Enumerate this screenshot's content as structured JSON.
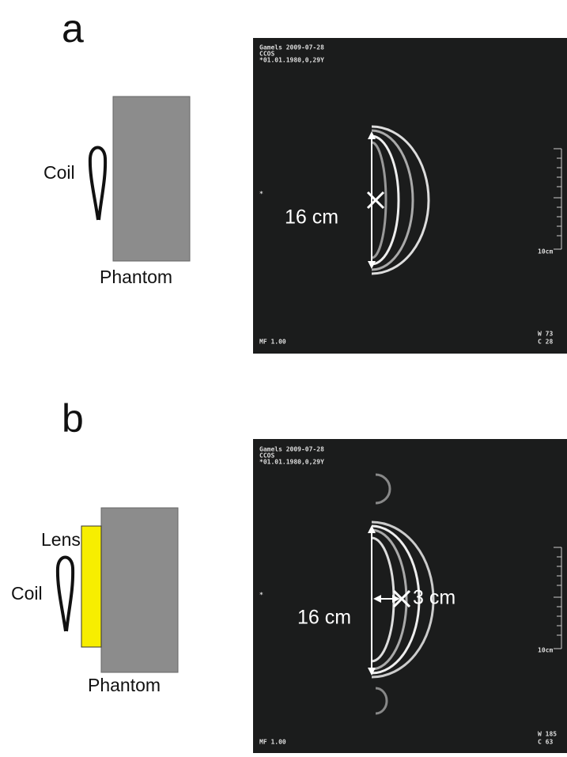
{
  "panels": [
    {
      "label": "a",
      "coil": "Coil",
      "phantom": "Phantom",
      "image": {
        "header": [
          "Gamels 2009-07-28",
          "CCOS",
          "*01.01.1980,0,29Y"
        ],
        "marker": "*",
        "scale": "10cm",
        "footer": "MF 1.00",
        "window": [
          "W 73",
          "C 28"
        ],
        "annotations": [
          "16 cm"
        ]
      }
    },
    {
      "label": "b",
      "lens": "Lens",
      "coil": "Coil",
      "phantom": "Phantom",
      "image": {
        "header": [
          "Gamels 2009-07-28",
          "CCOS",
          "*01.01.1980,0,29Y"
        ],
        "marker": "*",
        "scale": "10cm",
        "footer": "MF 1.00",
        "window": [
          "W 185",
          "C 63"
        ],
        "annotations": [
          "16 cm",
          "3 cm"
        ]
      }
    }
  ]
}
